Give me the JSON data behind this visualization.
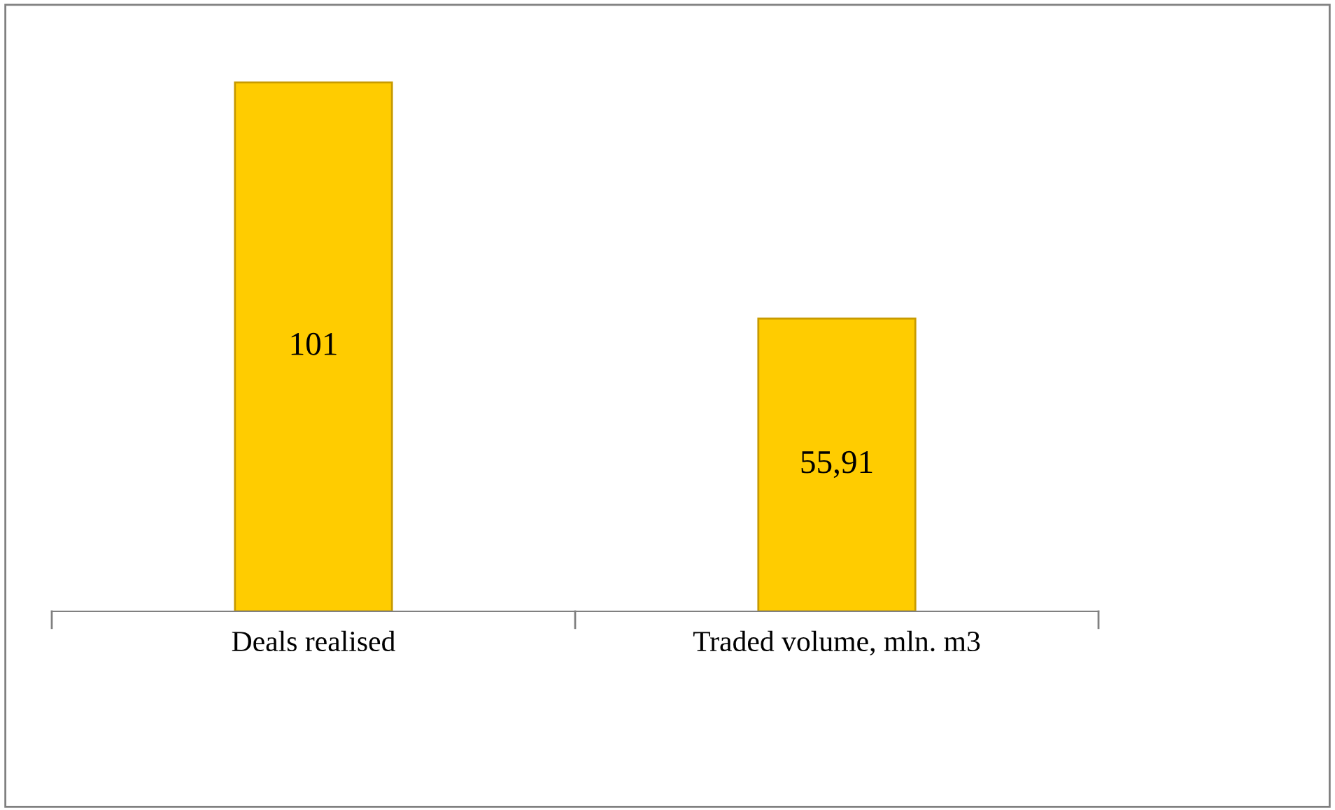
{
  "chart_data": {
    "type": "bar",
    "categories": [
      "Deals realised",
      "Traded volume, mln. m3"
    ],
    "series": [
      {
        "color": "#ffcc00",
        "values": [
          101,
          55.91
        ],
        "value_labels": [
          "101",
          "55,91"
        ]
      }
    ]
  }
}
